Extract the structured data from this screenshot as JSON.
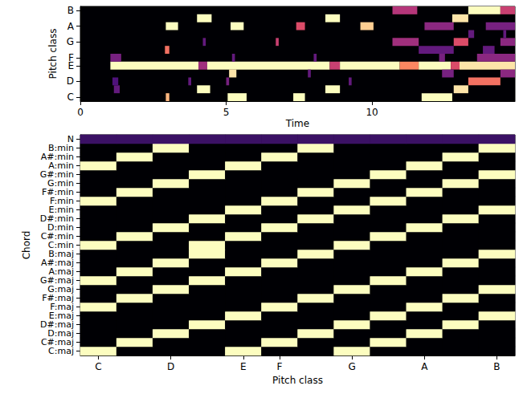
{
  "chart_data": [
    {
      "type": "heatmap",
      "xlabel": "Time",
      "ylabel": "Pitch class",
      "xlim": [
        0,
        14.9
      ],
      "xticks": [
        0,
        5,
        10
      ],
      "ycategories": [
        "C",
        null,
        "D",
        null,
        "E",
        "F",
        null,
        "G",
        null,
        "A",
        null,
        "B"
      ],
      "zlim": [
        0,
        1
      ],
      "cells": [
        [
          1.03,
          4.05,
          4,
          1
        ],
        [
          4.05,
          4.35,
          4,
          0.45
        ],
        [
          4.35,
          8.55,
          4,
          1
        ],
        [
          8.55,
          8.9,
          4,
          0.55
        ],
        [
          8.9,
          10.95,
          4,
          1
        ],
        [
          10.95,
          11.6,
          4,
          0.75
        ],
        [
          11.6,
          12.7,
          4,
          1
        ],
        [
          12.7,
          13.0,
          4,
          0.6
        ],
        [
          13.0,
          14.9,
          4,
          0.95
        ],
        [
          2.93,
          3.05,
          0,
          0.85
        ],
        [
          5.05,
          5.7,
          0,
          1
        ],
        [
          7.3,
          7.7,
          0,
          1
        ],
        [
          11.7,
          12.75,
          0,
          1
        ],
        [
          1.15,
          1.35,
          1,
          0.3
        ],
        [
          4.0,
          4.45,
          1,
          1
        ],
        [
          8.4,
          8.9,
          1,
          1
        ],
        [
          12.8,
          13.3,
          1,
          0.95
        ],
        [
          1.1,
          1.3,
          2,
          0.25
        ],
        [
          3.7,
          3.8,
          2,
          0.3
        ],
        [
          5.0,
          5.1,
          2,
          0.35
        ],
        [
          9.2,
          9.3,
          2,
          0.3
        ],
        [
          13.3,
          14.4,
          2,
          0.7
        ],
        [
          5.1,
          5.35,
          3,
          0.95
        ],
        [
          7.8,
          7.9,
          3,
          0.3
        ],
        [
          12.4,
          12.8,
          3,
          0.35
        ],
        [
          14.4,
          14.9,
          3,
          0.4
        ],
        [
          1.03,
          1.4,
          5,
          0.35
        ],
        [
          5.2,
          5.3,
          5,
          0.3
        ],
        [
          8.0,
          8.1,
          5,
          0.3
        ],
        [
          12.3,
          12.5,
          5,
          0.35
        ],
        [
          13.6,
          14.9,
          5,
          0.4
        ],
        [
          2.9,
          3.05,
          6,
          0.7
        ],
        [
          11.6,
          12.8,
          6,
          0.3
        ],
        [
          13.8,
          14.2,
          6,
          0.3
        ],
        [
          4.2,
          4.3,
          7,
          0.3
        ],
        [
          6.7,
          6.8,
          7,
          0.55
        ],
        [
          10.7,
          11.6,
          7,
          0.45
        ],
        [
          12.8,
          13.3,
          7,
          0.6
        ],
        [
          14.4,
          14.9,
          7,
          0.4
        ],
        [
          13.3,
          13.5,
          8,
          0.3
        ],
        [
          14.5,
          14.6,
          8,
          0.3
        ],
        [
          2.93,
          3.35,
          9,
          1
        ],
        [
          5.15,
          5.6,
          9,
          1
        ],
        [
          7.4,
          7.7,
          9,
          0.6
        ],
        [
          9.6,
          10.05,
          9,
          0.9
        ],
        [
          11.8,
          12.8,
          9,
          0.4
        ],
        [
          13.9,
          14.9,
          9,
          0.35
        ],
        [
          4.0,
          4.5,
          10,
          1
        ],
        [
          8.4,
          8.9,
          10,
          1
        ],
        [
          12.75,
          13.3,
          10,
          0.95
        ],
        [
          10.7,
          11.55,
          11,
          0.5
        ],
        [
          13.3,
          14.4,
          11,
          1
        ],
        [
          14.4,
          14.9,
          11,
          0.55
        ]
      ]
    },
    {
      "type": "heatmap",
      "xlabel": "Pitch class",
      "ylabel": "Chord",
      "xcategories": [
        "C",
        null,
        "D",
        null,
        "E",
        "F",
        null,
        "G",
        null,
        "A",
        null,
        "B"
      ],
      "ycategories": [
        "C:maj",
        "C#:maj",
        "D:maj",
        "D#:maj",
        "E:maj",
        "F:maj",
        "F#:maj",
        "G:maj",
        "G#:maj",
        "A:maj",
        "A#:maj",
        "B:maj",
        "C:min",
        "C#:min",
        "D:min",
        "D#:min",
        "E:min",
        "F:min",
        "F#:min",
        "G:min",
        "G#:min",
        "A:min",
        "A#:min",
        "B:min",
        "N"
      ],
      "zlim": [
        0,
        1
      ],
      "values": [
        [
          1,
          0,
          0,
          0,
          1,
          0,
          0,
          1,
          0,
          0,
          0,
          0
        ],
        [
          0,
          1,
          0,
          0,
          0,
          1,
          0,
          0,
          1,
          0,
          0,
          0
        ],
        [
          0,
          0,
          1,
          0,
          0,
          0,
          1,
          0,
          0,
          1,
          0,
          0
        ],
        [
          0,
          0,
          0,
          1,
          0,
          0,
          0,
          1,
          0,
          0,
          1,
          0
        ],
        [
          0,
          0,
          0,
          0,
          1,
          0,
          0,
          0,
          1,
          0,
          0,
          1
        ],
        [
          1,
          0,
          0,
          0,
          0,
          1,
          0,
          0,
          0,
          1,
          0,
          0
        ],
        [
          0,
          1,
          0,
          0,
          0,
          0,
          1,
          0,
          0,
          0,
          1,
          0
        ],
        [
          0,
          0,
          1,
          0,
          0,
          0,
          0,
          1,
          0,
          0,
          0,
          1
        ],
        [
          1,
          0,
          0,
          1,
          0,
          0,
          0,
          0,
          1,
          0,
          0,
          0
        ],
        [
          0,
          1,
          0,
          0,
          1,
          0,
          0,
          0,
          0,
          1,
          0,
          0
        ],
        [
          0,
          0,
          1,
          0,
          0,
          1,
          0,
          0,
          0,
          0,
          1,
          0
        ],
        [
          0,
          0,
          0,
          1,
          0,
          0,
          1,
          0,
          0,
          0,
          0,
          1
        ],
        [
          1,
          0,
          0,
          1,
          0,
          0,
          0,
          1,
          0,
          0,
          0,
          0
        ],
        [
          0,
          1,
          0,
          0,
          1,
          0,
          0,
          0,
          1,
          0,
          0,
          0
        ],
        [
          0,
          0,
          1,
          0,
          0,
          1,
          0,
          0,
          0,
          1,
          0,
          0
        ],
        [
          0,
          0,
          0,
          1,
          0,
          0,
          1,
          0,
          0,
          0,
          1,
          0
        ],
        [
          0,
          0,
          0,
          0,
          1,
          0,
          0,
          1,
          0,
          0,
          0,
          1
        ],
        [
          1,
          0,
          0,
          0,
          0,
          1,
          0,
          0,
          1,
          0,
          0,
          0
        ],
        [
          0,
          1,
          0,
          0,
          0,
          0,
          1,
          0,
          0,
          1,
          0,
          0
        ],
        [
          0,
          0,
          1,
          0,
          0,
          0,
          0,
          1,
          0,
          0,
          1,
          0
        ],
        [
          0,
          0,
          0,
          1,
          0,
          0,
          0,
          0,
          1,
          0,
          0,
          1
        ],
        [
          1,
          0,
          0,
          0,
          1,
          0,
          0,
          0,
          0,
          1,
          0,
          0
        ],
        [
          0,
          1,
          0,
          0,
          0,
          1,
          0,
          0,
          0,
          0,
          1,
          0
        ],
        [
          0,
          0,
          1,
          0,
          0,
          0,
          1,
          0,
          0,
          0,
          0,
          1
        ],
        [
          0.2,
          0.2,
          0.2,
          0.2,
          0.2,
          0.2,
          0.2,
          0.2,
          0.2,
          0.2,
          0.2,
          0.2
        ]
      ]
    }
  ]
}
